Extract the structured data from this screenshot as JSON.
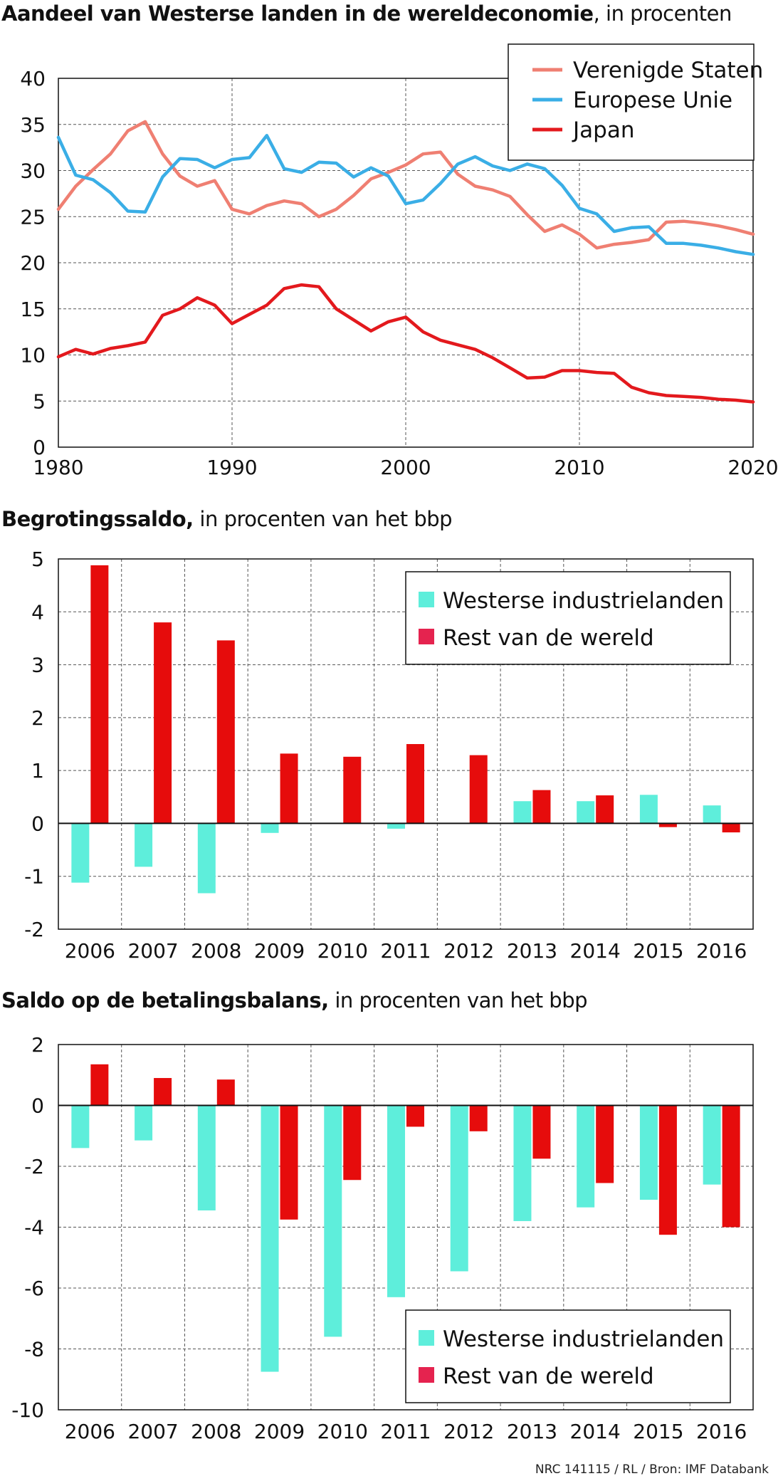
{
  "colors": {
    "us": "#ef7f72",
    "eu": "#3aaee6",
    "japan": "#e3191d",
    "west": "#5eeedb",
    "rest": "#e60c0c",
    "rest_legend": "#e5234f"
  },
  "chart_data": [
    {
      "type": "line",
      "title_bold": "Aandeel van Westerse landen in de wereldeconomie",
      "title_rest": ", in procenten",
      "xlim": [
        1980,
        2020
      ],
      "ylim": [
        0,
        40
      ],
      "xticks": [
        "1980",
        "1990",
        "2000",
        "2010",
        "2020"
      ],
      "yticks": [
        "0",
        "5",
        "10",
        "15",
        "20",
        "25",
        "30",
        "35",
        "40"
      ],
      "grid": true,
      "legend_position": "top-right",
      "x": [
        1980,
        1981,
        1982,
        1983,
        1984,
        1985,
        1986,
        1987,
        1988,
        1989,
        1990,
        1991,
        1992,
        1993,
        1994,
        1995,
        1996,
        1997,
        1998,
        1999,
        2000,
        2001,
        2002,
        2003,
        2004,
        2005,
        2006,
        2007,
        2008,
        2009,
        2010,
        2011,
        2012,
        2013,
        2014,
        2015,
        2016,
        2017,
        2018,
        2019,
        2020
      ],
      "series": [
        {
          "name": "Verenigde Staten",
          "color_key": "us",
          "values": [
            25.8,
            28.3,
            30.1,
            31.8,
            34.3,
            35.3,
            31.8,
            29.4,
            28.3,
            28.9,
            25.8,
            25.3,
            26.2,
            26.7,
            26.4,
            25.0,
            25.8,
            27.3,
            29.1,
            29.8,
            30.6,
            31.8,
            32.0,
            29.6,
            28.3,
            27.9,
            27.2,
            25.2,
            23.4,
            24.1,
            23.1,
            21.6,
            22.0,
            22.2,
            22.5,
            24.4,
            24.5,
            24.3,
            24.0,
            23.6,
            23.1
          ]
        },
        {
          "name": "Europese Unie",
          "color_key": "eu",
          "values": [
            33.6,
            29.5,
            29.0,
            27.6,
            25.6,
            25.5,
            29.3,
            31.3,
            31.2,
            30.3,
            31.2,
            31.4,
            33.8,
            30.2,
            29.8,
            30.9,
            30.8,
            29.3,
            30.3,
            29.4,
            26.4,
            26.8,
            28.6,
            30.7,
            31.5,
            30.5,
            30.0,
            30.7,
            30.2,
            28.4,
            25.9,
            25.3,
            23.4,
            23.8,
            23.9,
            22.1,
            22.1,
            21.9,
            21.6,
            21.2,
            20.9
          ]
        },
        {
          "name": "Japan",
          "color_key": "japan",
          "values": [
            9.8,
            10.6,
            10.1,
            10.7,
            11.0,
            11.4,
            14.3,
            15.0,
            16.2,
            15.4,
            13.4,
            14.4,
            15.4,
            17.2,
            17.6,
            17.4,
            15.0,
            13.8,
            12.6,
            13.6,
            14.1,
            12.5,
            11.6,
            11.1,
            10.6,
            9.7,
            8.6,
            7.5,
            7.6,
            8.3,
            8.3,
            8.1,
            8.0,
            6.5,
            5.9,
            5.6,
            5.5,
            5.4,
            5.2,
            5.1,
            4.9
          ]
        }
      ]
    },
    {
      "type": "bar",
      "title_bold": "Begrotingssaldo,",
      "title_rest": " in procenten van het bbp",
      "categories": [
        "2006",
        "2007",
        "2008",
        "2009",
        "2010",
        "2011",
        "2012",
        "2013",
        "2014",
        "2015",
        "2016"
      ],
      "ylim": [
        -2,
        5
      ],
      "yticks": [
        "-2",
        "-1",
        "0",
        "1",
        "2",
        "3",
        "4",
        "5"
      ],
      "grid": true,
      "legend_position": "top-right",
      "series": [
        {
          "name": "Westerse industrielanden",
          "color_key": "west",
          "values": [
            -1.12,
            -0.82,
            -1.32,
            -0.18,
            0.0,
            -0.1,
            0.0,
            0.42,
            0.42,
            0.54,
            0.34
          ]
        },
        {
          "name": "Rest van de wereld",
          "color_key": "rest",
          "values": [
            4.88,
            3.8,
            3.46,
            1.32,
            1.26,
            1.5,
            1.29,
            0.63,
            0.53,
            -0.07,
            -0.17
          ]
        }
      ]
    },
    {
      "type": "bar",
      "title_bold": "Saldo op de betalingsbalans,",
      "title_rest": "  in procenten van het bbp",
      "categories": [
        "2006",
        "2007",
        "2008",
        "2009",
        "2010",
        "2011",
        "2012",
        "2013",
        "2014",
        "2015",
        "2016"
      ],
      "ylim": [
        -10,
        2
      ],
      "yticks": [
        "-10",
        "-8",
        "-6",
        "-4",
        "-2",
        "0",
        "2"
      ],
      "grid": true,
      "legend_position": "bottom-right",
      "series": [
        {
          "name": "Westerse industrielanden",
          "color_key": "west",
          "values": [
            -1.4,
            -1.15,
            -3.45,
            -8.75,
            -7.6,
            -6.3,
            -5.45,
            -3.8,
            -3.35,
            -3.1,
            -2.6
          ]
        },
        {
          "name": "Rest van de wereld",
          "color_key": "rest",
          "values": [
            1.35,
            0.9,
            0.85,
            -3.75,
            -2.45,
            -0.7,
            -0.85,
            -1.75,
            -2.55,
            -4.25,
            -4.0
          ]
        }
      ]
    }
  ],
  "footer": {
    "credit": "NRC 141115 / RL / Bron: IMF Databank"
  }
}
